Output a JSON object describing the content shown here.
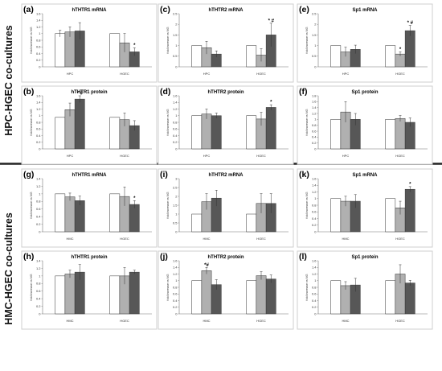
{
  "figure": {
    "row_titles": [
      "HPC-HGEC co-cultures",
      "HMC-HGEC co-cultures"
    ],
    "colors": {
      "ctrl": "#ffffff",
      "mid": "#b0b0b0",
      "dark": "#575757",
      "frame": "#cfcfcf",
      "divider": "#222222"
    }
  },
  "chart_data": [
    {
      "label": "(a)",
      "title": "hTHTR1 mRNA",
      "type": "bar",
      "ylabel": "fold increase vs NG",
      "ylim": [
        0,
        1.6
      ],
      "ticks": [
        "0",
        "0.2",
        "0.4",
        "0.6",
        "0.8",
        "1",
        "1.2",
        "1.4",
        "1.6"
      ],
      "categories": [
        "HPC",
        "HGEC"
      ],
      "values": [
        [
          1.0,
          1.05,
          1.08
        ],
        [
          1.0,
          0.72,
          0.45
        ]
      ],
      "errors": [
        [
          0.1,
          0.15,
          0.25
        ],
        [
          0.0,
          0.28,
          0.12
        ]
      ],
      "annotations": [
        [
          "",
          "",
          ""
        ],
        [
          "",
          "",
          "*"
        ]
      ]
    },
    {
      "label": "(c)",
      "title": "hTHTR2 mRNA",
      "type": "bar",
      "ylabel": "fold increase vs NG",
      "ylim": [
        0,
        2.5
      ],
      "ticks": [
        "0",
        "0.5",
        "1",
        "1.5",
        "2",
        "2.5"
      ],
      "categories": [
        "HPC",
        "HGEC"
      ],
      "values": [
        [
          1.0,
          0.9,
          0.6
        ],
        [
          1.0,
          0.55,
          1.5
        ]
      ],
      "errors": [
        [
          0.0,
          0.3,
          0.15
        ],
        [
          0.0,
          0.3,
          0.55
        ]
      ],
      "annotations": [
        [
          "",
          "",
          ""
        ],
        [
          "",
          "",
          "* #"
        ]
      ]
    },
    {
      "label": "(e)",
      "title": "Sp1 mRNA",
      "type": "bar",
      "ylabel": "fold increase vs NG",
      "ylim": [
        0,
        2.5
      ],
      "ticks": [
        "0",
        "0.5",
        "1",
        "1.5",
        "2",
        "2.5"
      ],
      "categories": [
        "HPC",
        "HGEC"
      ],
      "values": [
        [
          1.0,
          0.7,
          0.82
        ],
        [
          1.0,
          0.6,
          1.7
        ]
      ],
      "errors": [
        [
          0.0,
          0.22,
          0.2
        ],
        [
          0.0,
          0.1,
          0.25
        ]
      ],
      "annotations": [
        [
          "",
          "",
          ""
        ],
        [
          "",
          "*",
          "* #"
        ]
      ]
    },
    {
      "label": "(b)",
      "title": "hTHTR1 protein",
      "type": "bar",
      "ylabel": "fold increase vs NG",
      "ylim": [
        0,
        1.6
      ],
      "ticks": [
        "0",
        "0.2",
        "0.4",
        "0.6",
        "0.8",
        "1",
        "1.2",
        "1.4",
        "1.6"
      ],
      "categories": [
        "HPC",
        "HGEC"
      ],
      "values": [
        [
          0.95,
          1.18,
          1.5
        ],
        [
          0.95,
          0.88,
          0.7
        ]
      ],
      "errors": [
        [
          0.0,
          0.2,
          0.1
        ],
        [
          0.0,
          0.2,
          0.15
        ]
      ],
      "annotations": [
        [
          "",
          "",
          "* #"
        ],
        [
          "",
          "",
          ""
        ]
      ]
    },
    {
      "label": "(d)",
      "title": "hTHTR2 protein",
      "type": "bar",
      "ylabel": "fold increase vs NG",
      "ylim": [
        0,
        1.6
      ],
      "ticks": [
        "0",
        "0.2",
        "0.4",
        "0.6",
        "0.8",
        "1",
        "1.2",
        "1.4",
        "1.6"
      ],
      "categories": [
        "HPC",
        "HGEC"
      ],
      "values": [
        [
          1.0,
          1.05,
          1.0
        ],
        [
          1.0,
          0.9,
          1.25
        ]
      ],
      "errors": [
        [
          0.0,
          0.15,
          0.08
        ],
        [
          0.0,
          0.2,
          0.08
        ]
      ],
      "annotations": [
        [
          "",
          "",
          ""
        ],
        [
          "",
          "",
          "*"
        ]
      ]
    },
    {
      "label": "(f)",
      "title": "Sp1 protein",
      "type": "bar",
      "ylabel": "fold increase vs NG",
      "ylim": [
        0,
        1.8
      ],
      "ticks": [
        "0",
        "0.2",
        "0.4",
        "0.6",
        "0.8",
        "1",
        "1.2",
        "1.4",
        "1.6",
        "1.8"
      ],
      "categories": [
        "HPC",
        "HGEC"
      ],
      "values": [
        [
          1.0,
          1.25,
          1.0
        ],
        [
          1.0,
          1.03,
          0.9
        ]
      ],
      "errors": [
        [
          0.0,
          0.35,
          0.2
        ],
        [
          0.0,
          0.1,
          0.15
        ]
      ],
      "annotations": [
        [
          "",
          "",
          ""
        ],
        [
          "",
          "",
          ""
        ]
      ]
    },
    {
      "label": "(g)",
      "title": "hTHTR1 mRNA",
      "type": "bar",
      "ylabel": "fold increase vs NG",
      "ylim": [
        0,
        1.4
      ],
      "ticks": [
        "0",
        "0.2",
        "0.4",
        "0.6",
        "0.8",
        "1",
        "1.2",
        "1.4"
      ],
      "categories": [
        "HMC",
        "HGEC"
      ],
      "values": [
        [
          1.0,
          0.92,
          0.82
        ],
        [
          1.0,
          0.93,
          0.72
        ]
      ],
      "errors": [
        [
          0.0,
          0.1,
          0.12
        ],
        [
          0.0,
          0.25,
          0.1
        ]
      ],
      "annotations": [
        [
          "",
          "",
          ""
        ],
        [
          "",
          "",
          "*"
        ]
      ]
    },
    {
      "label": "(i)",
      "title": "hTHTR2 mRNA",
      "type": "bar",
      "ylabel": "fold increase vs NG",
      "ylim": [
        0,
        3
      ],
      "ticks": [
        "0",
        "0.5",
        "1",
        "1.5",
        "2",
        "2.5",
        "3"
      ],
      "categories": [
        "HMC",
        "HGEC"
      ],
      "values": [
        [
          1.0,
          1.7,
          1.9
        ],
        [
          1.0,
          1.6,
          1.6
        ]
      ],
      "errors": [
        [
          0.0,
          0.45,
          0.45
        ],
        [
          0.0,
          0.55,
          0.55
        ]
      ],
      "annotations": [
        [
          "",
          "",
          ""
        ],
        [
          "",
          "",
          ""
        ]
      ]
    },
    {
      "label": "(k)",
      "title": "Sp1 mRNA",
      "type": "bar",
      "ylabel": "fold increase vs NG",
      "ylim": [
        0,
        1.6
      ],
      "ticks": [
        "0",
        "0.2",
        "0.4",
        "0.6",
        "0.8",
        "1",
        "1.2",
        "1.4",
        "1.6"
      ],
      "categories": [
        "HMC",
        "HGEC"
      ],
      "values": [
        [
          1.0,
          0.92,
          0.92
        ],
        [
          1.0,
          0.72,
          1.28
        ]
      ],
      "errors": [
        [
          0.0,
          0.15,
          0.2
        ],
        [
          0.0,
          0.2,
          0.08
        ]
      ],
      "annotations": [
        [
          "",
          "",
          ""
        ],
        [
          "",
          "",
          "*"
        ]
      ]
    },
    {
      "label": "(h)",
      "title": "hTHTR1 protein",
      "type": "bar",
      "ylabel": "fold increase vs NG",
      "ylim": [
        0,
        1.4
      ],
      "ticks": [
        "0",
        "0.2",
        "0.4",
        "0.6",
        "0.8",
        "1",
        "1.2",
        "1.4"
      ],
      "categories": [
        "HMC",
        "HGEC"
      ],
      "values": [
        [
          1.0,
          1.05,
          1.1
        ],
        [
          1.0,
          1.0,
          1.1
        ]
      ],
      "errors": [
        [
          0.0,
          0.1,
          0.2
        ],
        [
          0.0,
          0.22,
          0.05
        ]
      ],
      "annotations": [
        [
          "",
          "",
          ""
        ],
        [
          "",
          "",
          ""
        ]
      ]
    },
    {
      "label": "(j)",
      "title": "hTHTR2 protein",
      "type": "bar",
      "ylabel": "fold increase vs NG",
      "ylim": [
        0,
        1.6
      ],
      "ticks": [
        "0",
        "0.2",
        "0.4",
        "0.6",
        "0.8",
        "1",
        "1.2",
        "1.4",
        "1.6"
      ],
      "categories": [
        "HMC",
        "HGEC"
      ],
      "values": [
        [
          1.0,
          1.3,
          0.88
        ],
        [
          1.0,
          1.15,
          1.05
        ]
      ],
      "errors": [
        [
          0.0,
          0.1,
          0.15
        ],
        [
          0.0,
          0.12,
          0.12
        ]
      ],
      "annotations": [
        [
          "",
          "*#",
          ""
        ],
        [
          "",
          "",
          ""
        ]
      ]
    },
    {
      "label": "(l)",
      "title": "Sp1 protein",
      "type": "bar",
      "ylabel": "fold increase vs NG",
      "ylim": [
        0,
        1.6
      ],
      "ticks": [
        "0",
        "0.2",
        "0.4",
        "0.6",
        "0.8",
        "1",
        "1.2",
        "1.4",
        "1.6"
      ],
      "categories": [
        "HMC",
        "HGEC"
      ],
      "values": [
        [
          1.0,
          0.85,
          0.87
        ],
        [
          1.0,
          1.2,
          0.93
        ]
      ],
      "errors": [
        [
          0.0,
          0.12,
          0.2
        ],
        [
          0.0,
          0.28,
          0.08
        ]
      ],
      "annotations": [
        [
          "",
          "",
          ""
        ],
        [
          "",
          "",
          ""
        ]
      ]
    }
  ]
}
